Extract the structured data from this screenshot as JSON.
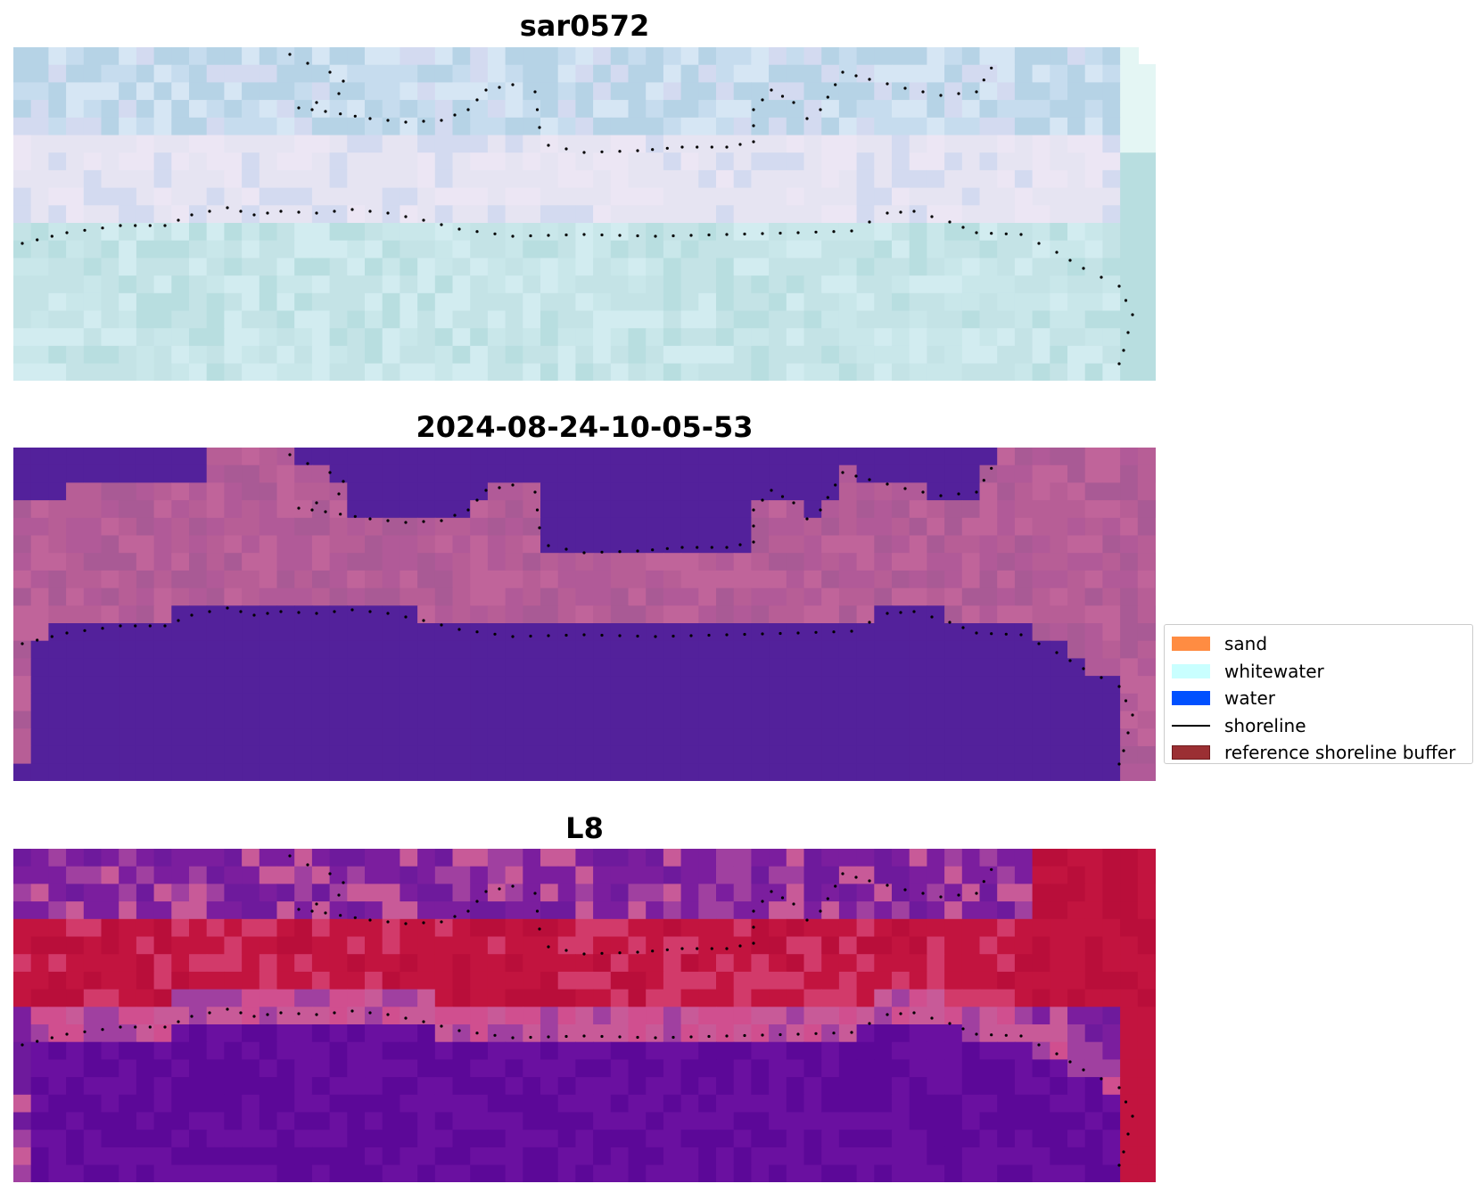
{
  "panels": [
    {
      "title": "sar0572",
      "palette": [
        "#d6e6f4",
        "#c6dcee",
        "#b6d3e6",
        "#d3daf0",
        "#e6e4f2",
        "#ece6f4",
        "#d2ecf0",
        "#c4e3e6",
        "#b8dee0",
        "#c9e7ea",
        "#e4f6f4"
      ]
    },
    {
      "title": "2024-08-24-10-05-53",
      "palette": [
        "#53219b",
        "#b15a98",
        "#a95a95",
        "#b75e96",
        "#c0649a"
      ]
    },
    {
      "title": "L8",
      "palette": [
        "#7b1e9e",
        "#6e1a9c",
        "#c85a98",
        "#d04f8f",
        "#c2143f",
        "#b90e3a",
        "#d23a6a",
        "#a040a0",
        "#5c0898",
        "#6a10a0"
      ]
    }
  ],
  "legend": {
    "placement": "right",
    "items": [
      {
        "label": "sand",
        "color": "#ff8c42",
        "kind": "patch"
      },
      {
        "label": "whitewater",
        "color": "#c9ffff",
        "kind": "patch"
      },
      {
        "label": "water",
        "color": "#0050ff",
        "kind": "patch"
      },
      {
        "label": "shoreline",
        "color": "#000000",
        "kind": "line"
      },
      {
        "label": "reference shoreline buffer",
        "color": "#9b2f33",
        "kind": "patch",
        "edge": "#6e1a1d"
      }
    ]
  },
  "colors": {
    "shoreline_dots": "#000000"
  }
}
